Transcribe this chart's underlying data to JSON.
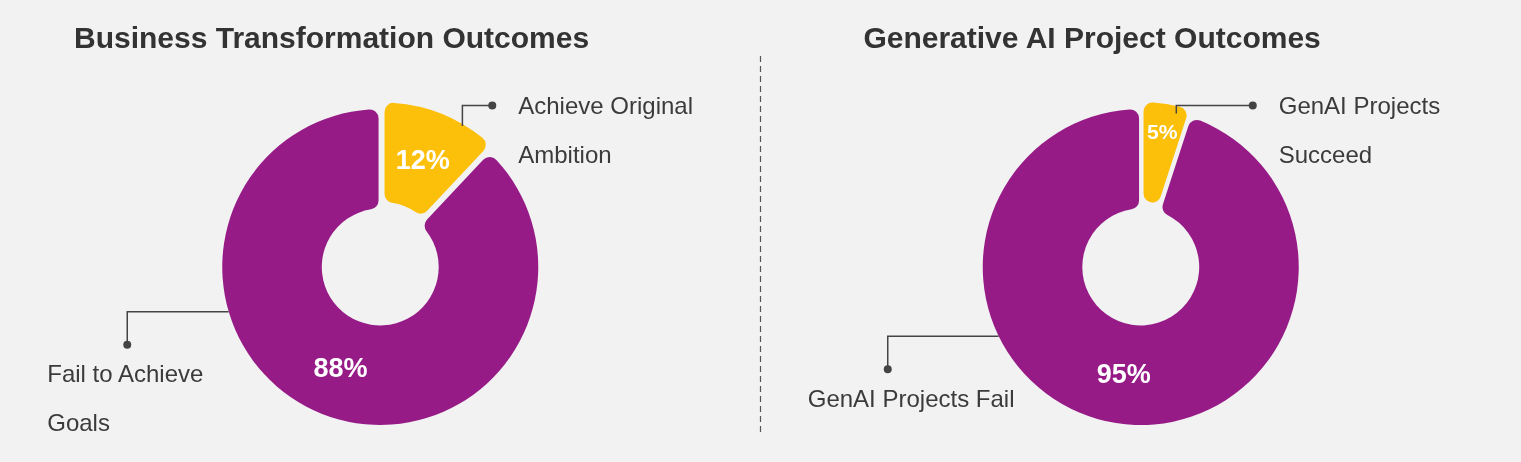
{
  "chart_data": [
    {
      "type": "donut",
      "title": "Business Transformation Outcomes",
      "categories": [
        "Achieve Original Ambition",
        "Fail to Achieve Goals"
      ],
      "values": [
        12,
        88
      ],
      "colors": [
        "#fdc00a",
        "#961b87"
      ],
      "value_labels": [
        "12%",
        "88%"
      ]
    },
    {
      "type": "donut",
      "title": "Generative AI Project Outcomes",
      "categories": [
        "GenAI Projects Succeed",
        "GenAI Projects Fail"
      ],
      "values": [
        5,
        95
      ],
      "colors": [
        "#fdc00a",
        "#961b87"
      ],
      "value_labels": [
        "5%",
        "95%"
      ]
    }
  ]
}
